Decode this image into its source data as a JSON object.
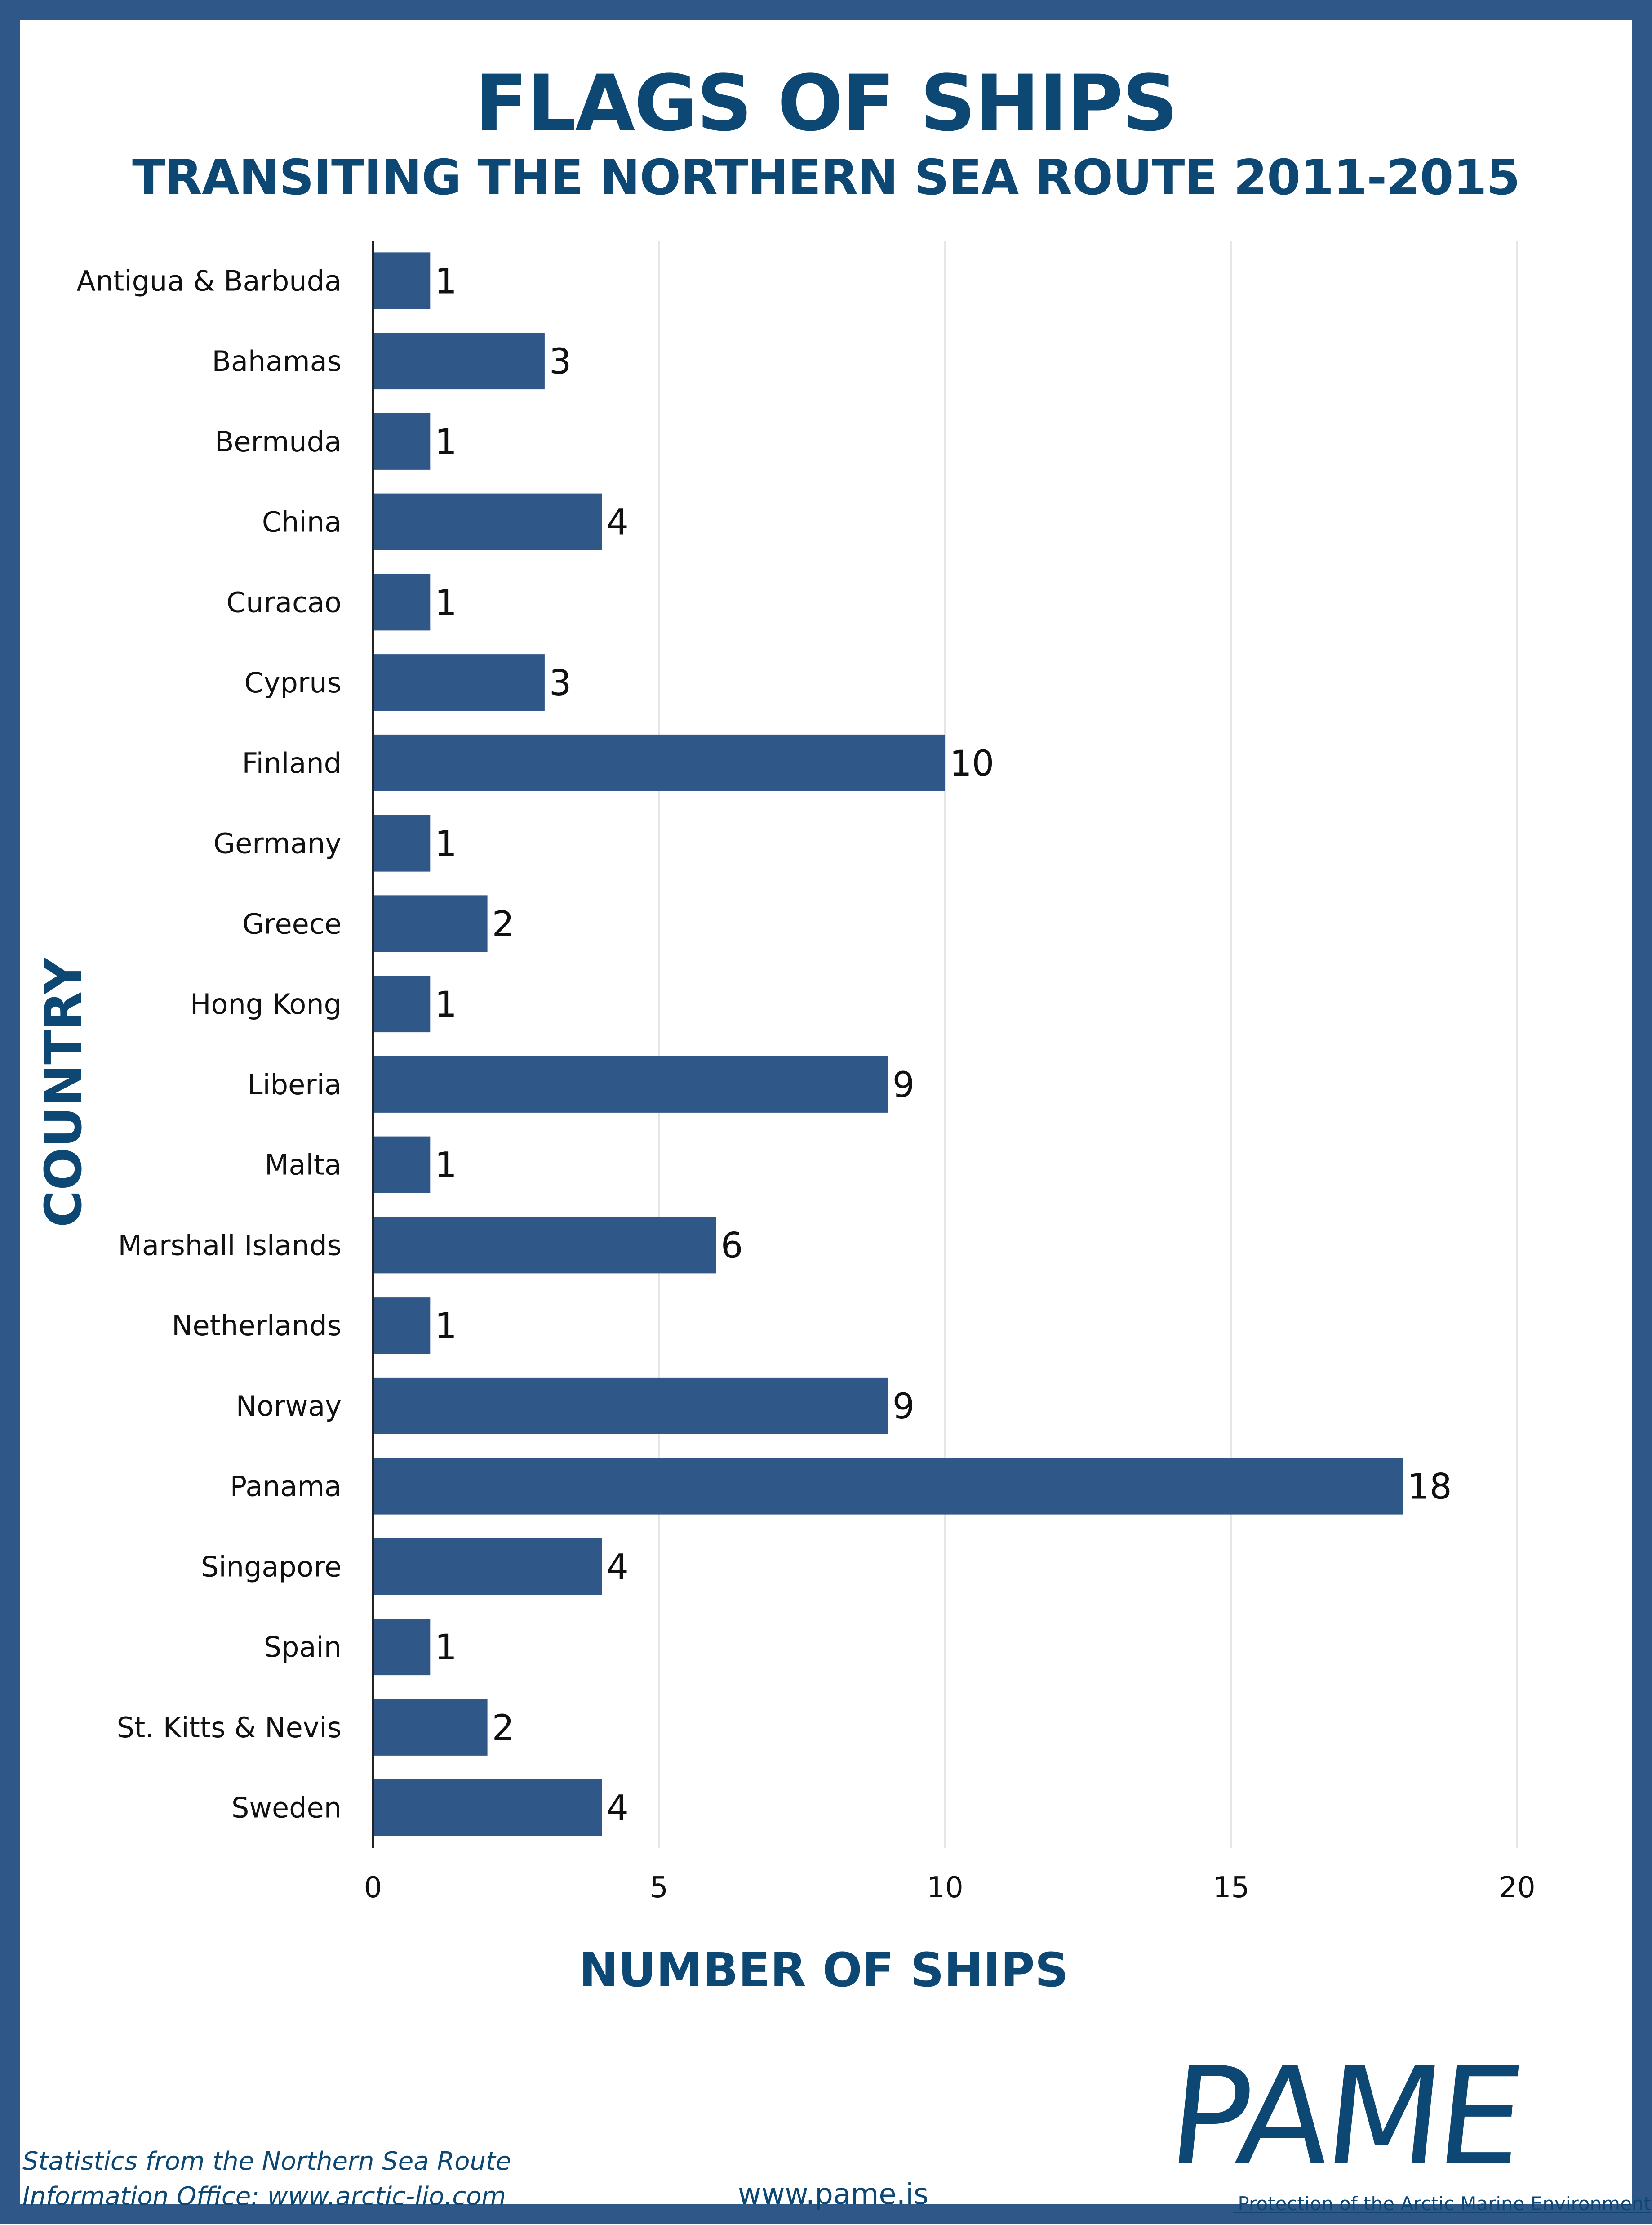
{
  "colors": {
    "bar": "#2f5889",
    "frame": "#2f5889",
    "heading": "#0d4773",
    "grid": "#e6e6e6"
  },
  "header": {
    "title": "FLAGS OF SHIPS",
    "subtitle": "TRANSITING THE NORTHERN SEA ROUTE 2011-2015"
  },
  "chart_data": {
    "type": "bar",
    "orientation": "horizontal",
    "title": "FLAGS OF SHIPS",
    "subtitle": "TRANSITING THE NORTHERN SEA ROUTE 2011-2015",
    "xlabel": "NUMBER OF SHIPS",
    "ylabel": "COUNTRY",
    "categories": [
      "Antigua & Barbuda",
      "Bahamas",
      "Bermuda",
      "China",
      "Curacao",
      "Cyprus",
      "Finland",
      "Germany",
      "Greece",
      "Hong Kong",
      "Liberia",
      "Malta",
      "Marshall Islands",
      "Netherlands",
      "Norway",
      "Panama",
      "Singapore",
      "Spain",
      "St. Kitts & Nevis",
      "Sweden"
    ],
    "values": [
      1,
      3,
      1,
      4,
      1,
      3,
      10,
      1,
      2,
      1,
      9,
      1,
      6,
      1,
      9,
      18,
      4,
      1,
      2,
      4
    ],
    "xlim": [
      0,
      20
    ],
    "xticks": [
      0,
      5,
      10,
      15,
      20
    ],
    "grid": "vertical",
    "data_labels": true
  },
  "footer": {
    "source_line1": "Statistics from the Northern Sea Route",
    "source_line2": "Information Office: www.arctic-lio.com",
    "website": "www.pame.is"
  },
  "logo": {
    "wordmark": "PAME",
    "tagline": "Protection of the Arctic Marine Environment"
  }
}
